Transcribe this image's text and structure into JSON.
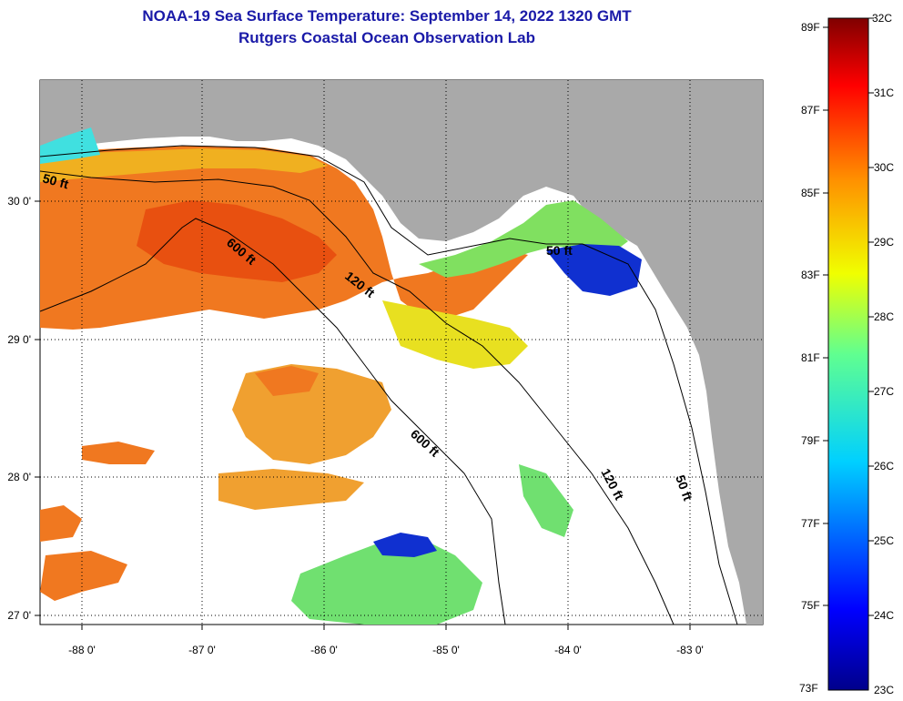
{
  "header": {
    "title": "NOAA-19 Sea Surface Temperature:  September 14, 2022 1320 GMT",
    "subtitle": "Rutgers Coastal Ocean Observation Lab"
  },
  "axes": {
    "lon_labels": [
      "-88 0'",
      "-87 0'",
      "-86 0'",
      "-85 0'",
      "-84 0'",
      "-83 0'"
    ],
    "lat_labels": [
      "30 0'",
      "29 0'",
      "28 0'",
      "27 0'"
    ]
  },
  "contours": {
    "c50_left": "50 ft",
    "c600_top": "600 ft",
    "c120_top": "120 ft",
    "c50_right": "50 ft",
    "c600_bottom": "600 ft",
    "c120_bottom": "120 ft",
    "c50_bottom": "50 ft"
  },
  "colorbar": {
    "fahrenheit": [
      "89F",
      "87F",
      "85F",
      "83F",
      "81F",
      "79F",
      "77F",
      "75F",
      "73F"
    ],
    "celsius": [
      "32C",
      "31C",
      "30C",
      "29C",
      "28C",
      "27C",
      "26C",
      "25C",
      "24C",
      "23C"
    ]
  },
  "colors": {
    "land": "#a9a9a9",
    "title": "#1a1aa8",
    "warm": "#f07820",
    "hot": "#e85010",
    "mid": "#f0b020",
    "yellow": "#e8e020",
    "green": "#60e060",
    "cyan": "#20e0e0",
    "blue": "#2040d0",
    "navy": "#0010a0"
  }
}
